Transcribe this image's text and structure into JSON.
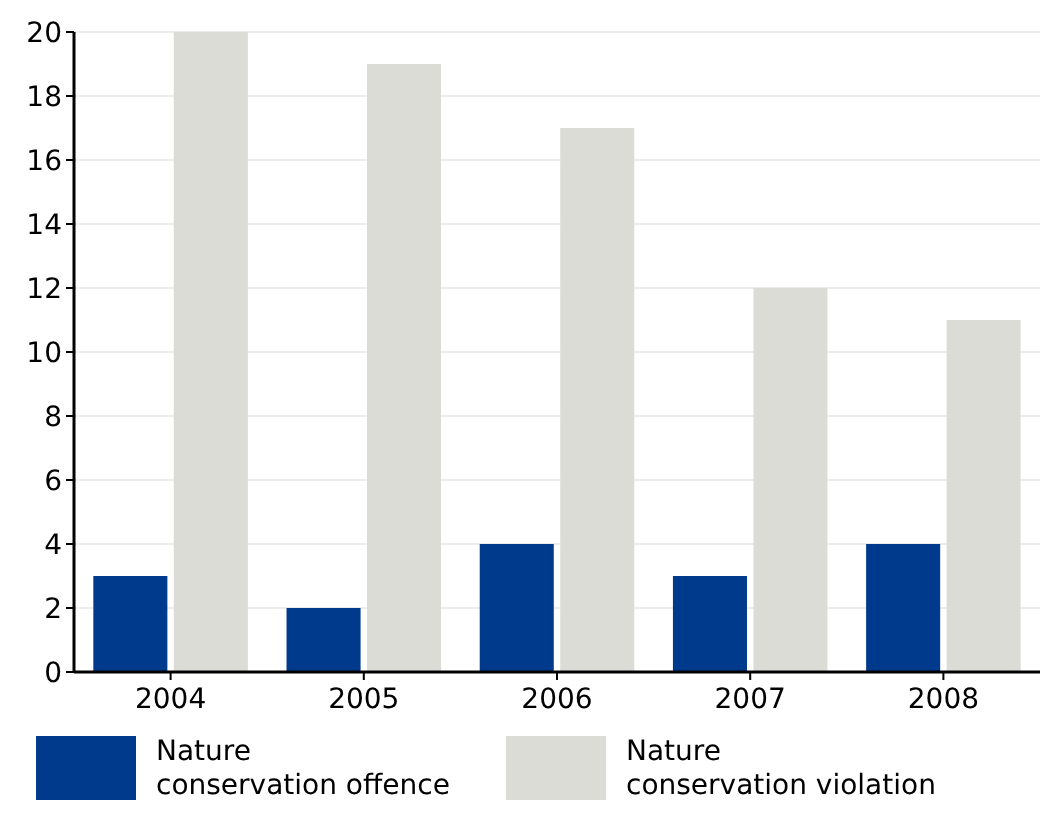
{
  "chart_data": {
    "type": "bar",
    "categories": [
      "2004",
      "2005",
      "2006",
      "2007",
      "2008"
    ],
    "series": [
      {
        "name": "Nature conservation offence",
        "color": "#003a8c",
        "values": [
          3,
          2,
          4,
          3,
          4
        ]
      },
      {
        "name": "Nature conservation violation",
        "color": "#dcdcd6",
        "values": [
          20,
          19,
          17,
          12,
          11
        ]
      }
    ],
    "ylim": [
      0,
      20
    ],
    "yticks": [
      0,
      2,
      4,
      6,
      8,
      10,
      12,
      14,
      16,
      18,
      20
    ],
    "grid": "y",
    "legend": "bottom"
  }
}
